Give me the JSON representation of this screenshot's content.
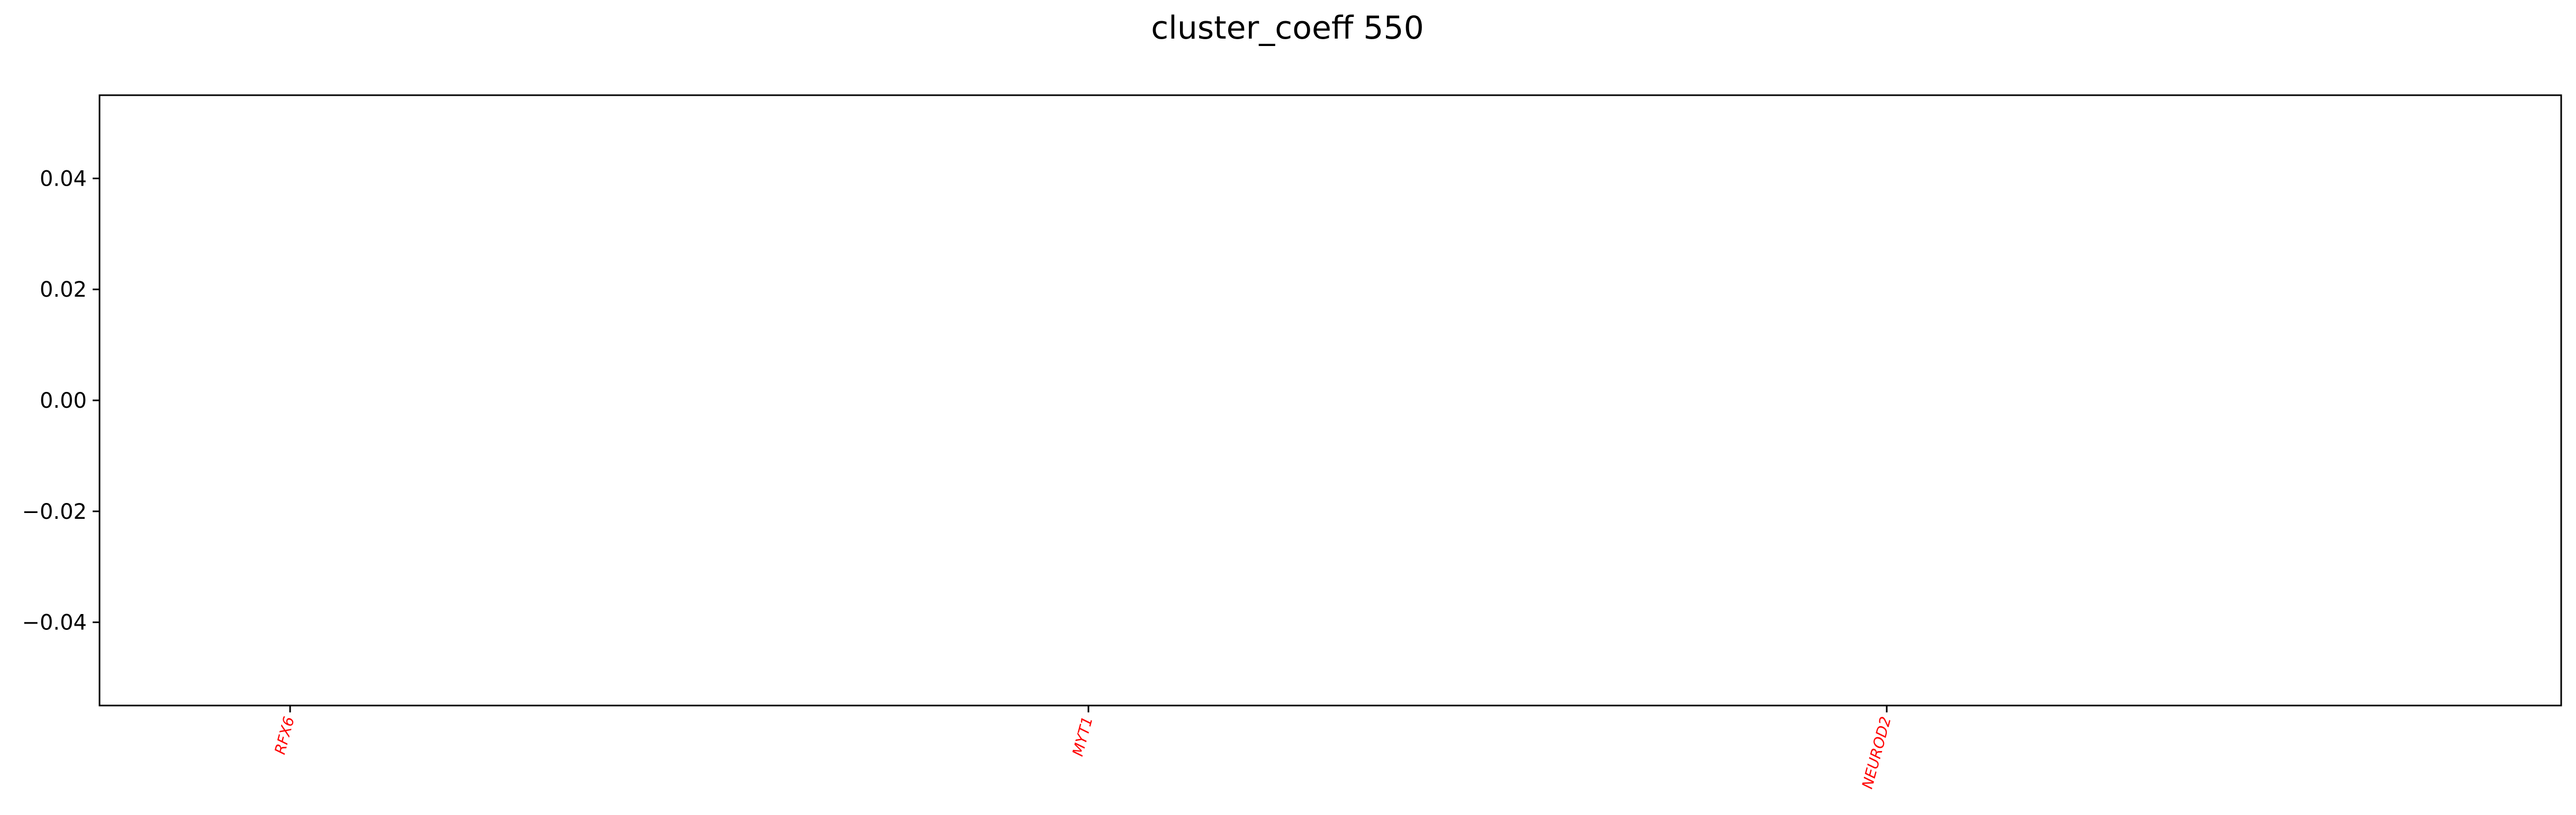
{
  "chart_data": {
    "type": "bar",
    "title": "cluster_coeff 550",
    "xlabel": "",
    "ylabel": "",
    "categories": [
      "RFX6",
      "MYT1",
      "NEUROD2"
    ],
    "values": [
      0,
      0,
      0
    ],
    "ylim": [
      -0.055,
      0.055
    ],
    "yticks": [
      0.04,
      0.02,
      0.0,
      -0.02,
      -0.04
    ],
    "ytick_labels": [
      "0.04",
      "0.02",
      "0.00",
      "−0.02",
      "−0.04"
    ],
    "grid": false,
    "legend": "none",
    "tick_label_color": "#ff0000",
    "axes_color": "#000000"
  }
}
